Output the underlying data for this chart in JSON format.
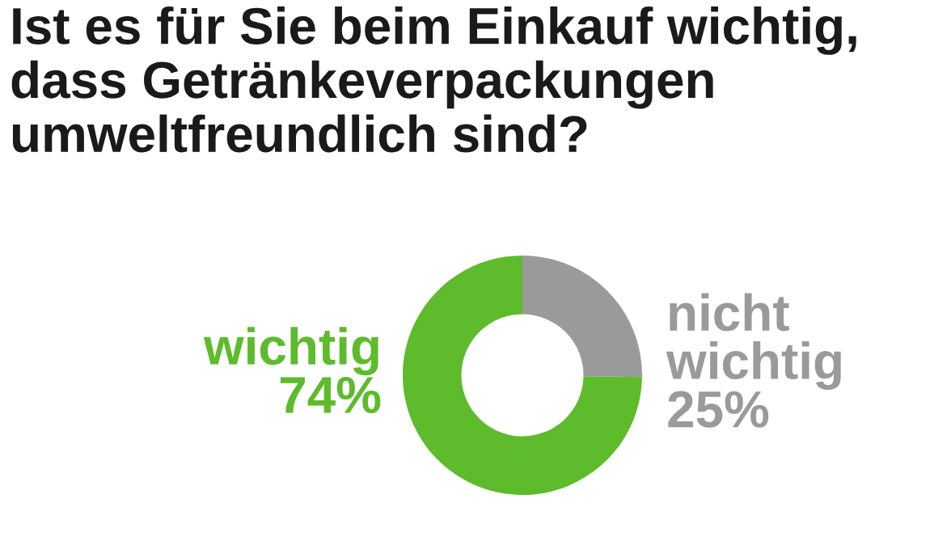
{
  "chart_data": {
    "type": "donut",
    "title": "Ist es für Sie beim Einkauf wichtig,\ndass Getränkeverpackungen\numweltfreundlich sind?",
    "categories": [
      "wichtig",
      "nicht wichtig"
    ],
    "values": [
      74,
      25
    ],
    "colors": [
      "#5dbb2c",
      "#9a9a9a"
    ],
    "value_labels": [
      "74%",
      "25%"
    ],
    "legend": false
  }
}
